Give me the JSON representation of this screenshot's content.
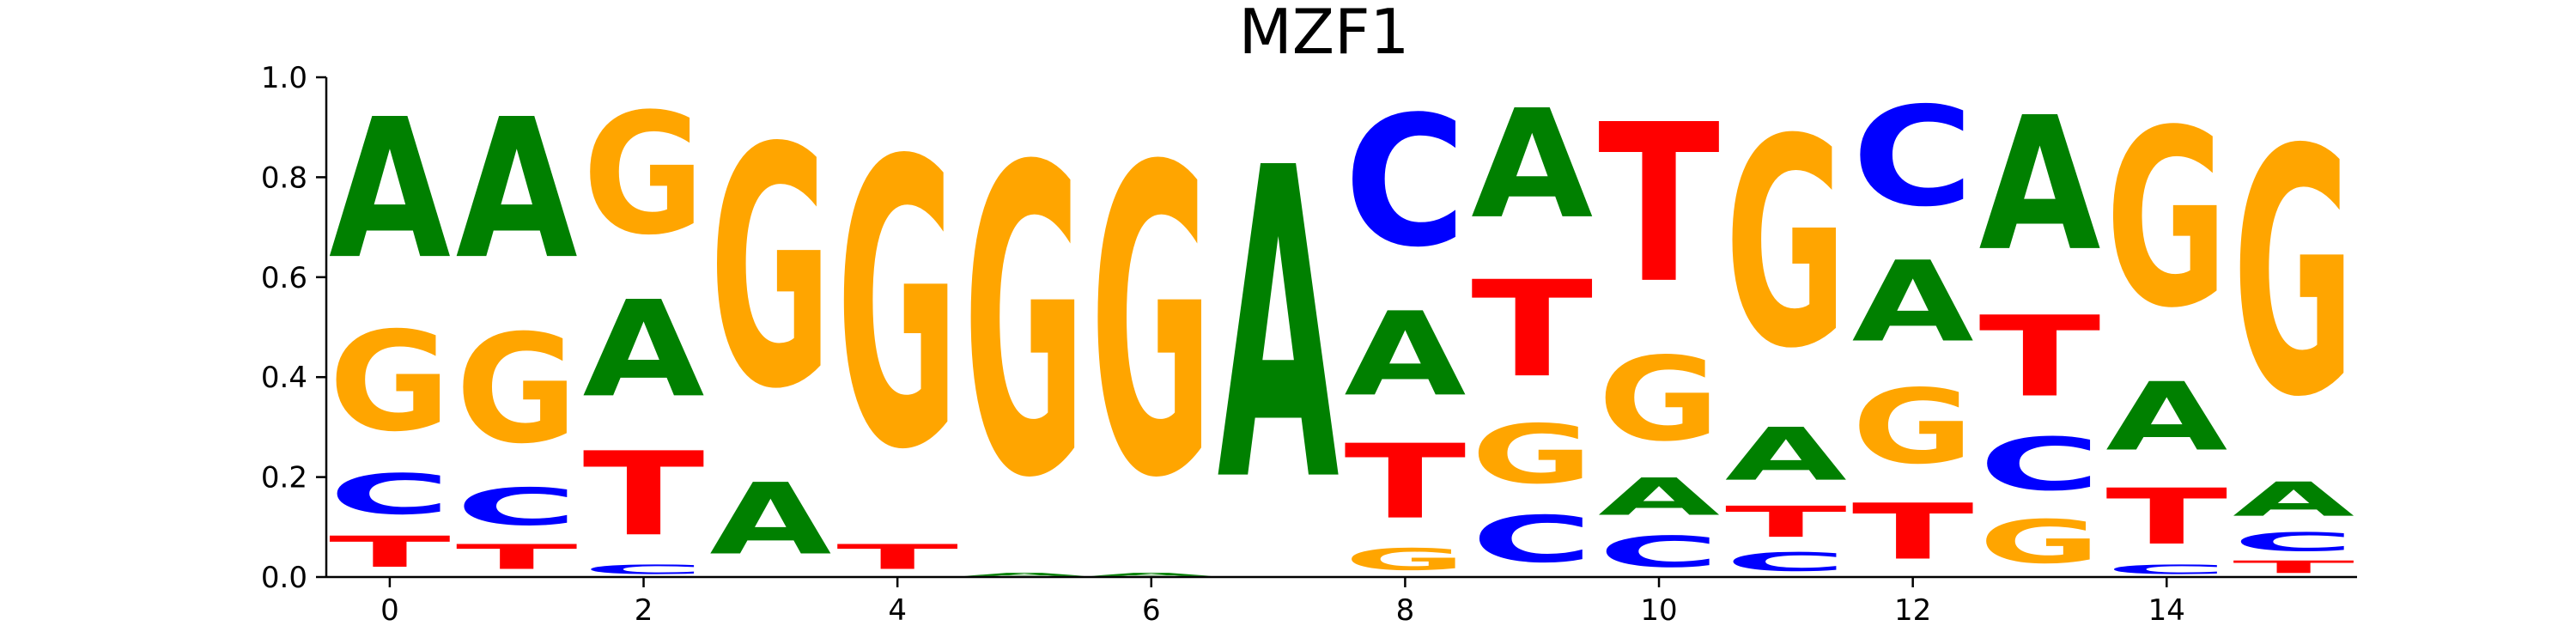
{
  "chart_data": {
    "type": "sequence-logo",
    "title": "MZF1",
    "xlabel": "",
    "ylabel": "",
    "ylim": [
      0,
      1.0
    ],
    "xlim": [
      -0.5,
      15.5
    ],
    "yticks": [
      0.0,
      0.2,
      0.4,
      0.6,
      0.8,
      1.0
    ],
    "ytick_labels": [
      "0.0",
      "0.2",
      "0.4",
      "0.6",
      "0.8",
      "1.0"
    ],
    "xticks": [
      0,
      2,
      4,
      6,
      8,
      10,
      12,
      14
    ],
    "xtick_labels": [
      "0",
      "2",
      "4",
      "6",
      "8",
      "10",
      "12",
      "14"
    ],
    "colors": {
      "A": "#008000",
      "C": "#0000ff",
      "G": "#ffa500",
      "T": "#ff0000"
    },
    "positions": [
      {
        "pos": 0,
        "A": 0.45,
        "C": 0.13,
        "G": 0.32,
        "T": 0.1
      },
      {
        "pos": 1,
        "A": 0.45,
        "C": 0.12,
        "G": 0.35,
        "T": 0.08
      },
      {
        "pos": 2,
        "A": 0.31,
        "C": 0.03,
        "G": 0.39,
        "T": 0.27
      },
      {
        "pos": 3,
        "A": 0.23,
        "C": 0.0,
        "G": 0.77,
        "T": 0.0
      },
      {
        "pos": 4,
        "A": 0.0,
        "C": 0.0,
        "G": 0.92,
        "T": 0.08
      },
      {
        "pos": 5,
        "A": 0.01,
        "C": 0.0,
        "G": 0.99,
        "T": 0.0
      },
      {
        "pos": 6,
        "A": 0.01,
        "C": 0.0,
        "G": 0.99,
        "T": 0.0
      },
      {
        "pos": 7,
        "A": 1.0,
        "C": 0.0,
        "G": 0.0,
        "T": 0.0
      },
      {
        "pos": 8,
        "A": 0.27,
        "C": 0.42,
        "G": 0.07,
        "T": 0.24
      },
      {
        "pos": 9,
        "A": 0.35,
        "C": 0.15,
        "G": 0.19,
        "T": 0.31
      },
      {
        "pos": 10,
        "A": 0.12,
        "C": 0.1,
        "G": 0.27,
        "T": 0.51
      },
      {
        "pos": 11,
        "A": 0.17,
        "C": 0.06,
        "G": 0.67,
        "T": 0.1
      },
      {
        "pos": 12,
        "A": 0.26,
        "C": 0.32,
        "G": 0.24,
        "T": 0.18
      },
      {
        "pos": 13,
        "A": 0.43,
        "C": 0.17,
        "G": 0.14,
        "T": 0.26
      },
      {
        "pos": 14,
        "A": 0.22,
        "C": 0.03,
        "G": 0.57,
        "T": 0.18
      },
      {
        "pos": 15,
        "A": 0.11,
        "C": 0.06,
        "G": 0.79,
        "T": 0.04
      }
    ]
  }
}
